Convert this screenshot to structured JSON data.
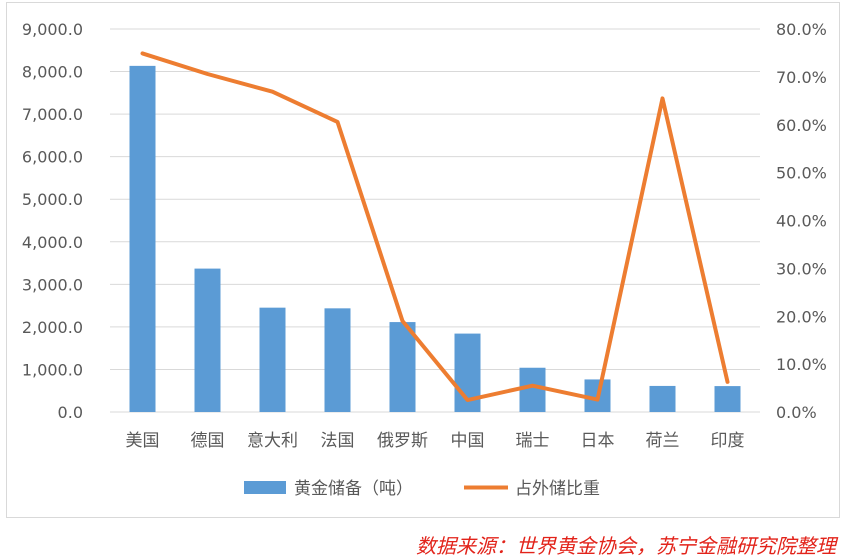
{
  "chart_data": {
    "type": "bar",
    "categories": [
      "美国",
      "德国",
      "意大利",
      "法国",
      "俄罗斯",
      "中国",
      "瑞士",
      "日本",
      "荷兰",
      "印度"
    ],
    "series": [
      {
        "name": "黄金储备（吨）",
        "type": "bar",
        "axis": "left",
        "color": "#5b9bd5",
        "values": [
          8133.5,
          3369.7,
          2451.8,
          2436.0,
          2113.0,
          1842.6,
          1040.0,
          765.2,
          612.5,
          608.7
        ]
      },
      {
        "name": "占外储比重",
        "type": "line",
        "axis": "right",
        "color": "#ed7d31",
        "values": [
          74.9,
          70.6,
          66.9,
          60.6,
          19.0,
          2.5,
          5.5,
          2.6,
          65.5,
          6.3
        ]
      }
    ],
    "y_left": {
      "min": 0,
      "max": 9000,
      "step": 1000,
      "tick_labels": [
        "0.0",
        "1,000.0",
        "2,000.0",
        "3,000.0",
        "4,000.0",
        "5,000.0",
        "6,000.0",
        "7,000.0",
        "8,000.0",
        "9,000.0"
      ]
    },
    "y_right": {
      "min": 0,
      "max": 80,
      "step": 10,
      "tick_labels": [
        "0.0%",
        "10.0%",
        "20.0%",
        "30.0%",
        "40.0%",
        "50.0%",
        "60.0%",
        "70.0%",
        "80.0%"
      ]
    },
    "grid": true,
    "legend_position": "bottom"
  },
  "source_note": "数据来源：世界黄金协会，苏宁金融研究院整理"
}
